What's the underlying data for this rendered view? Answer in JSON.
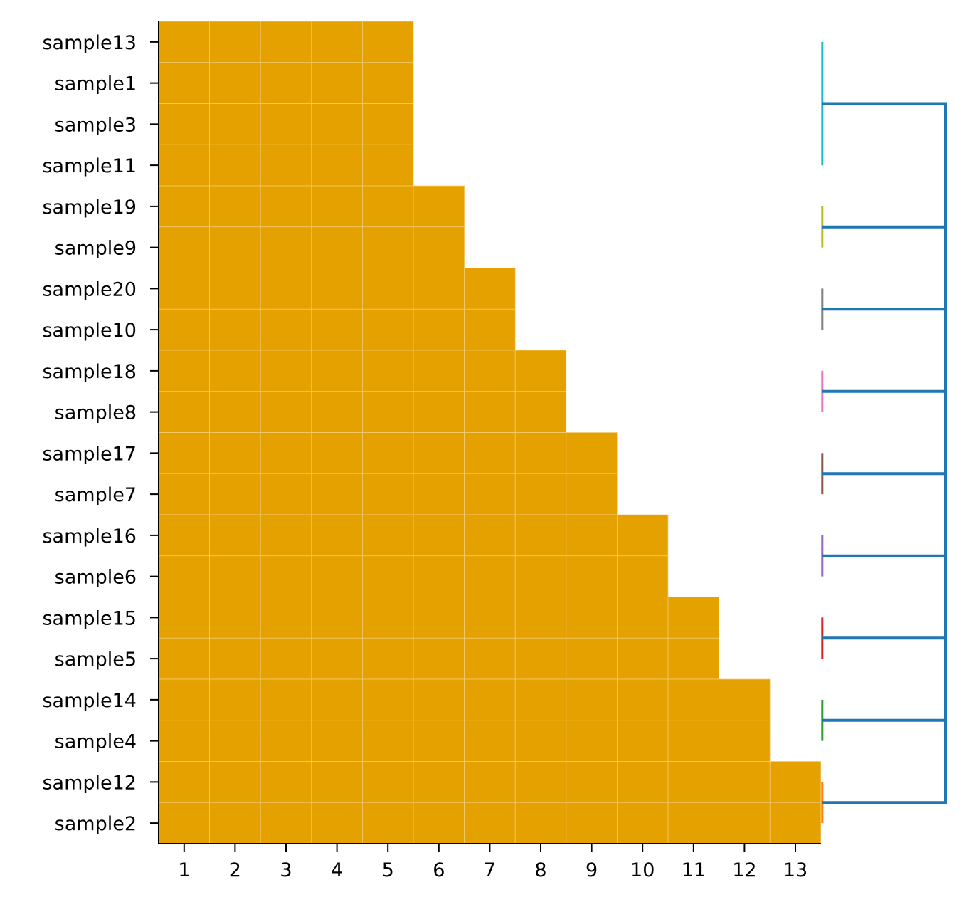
{
  "chart_data": {
    "type": "heatmap",
    "rows": [
      "sample13",
      "sample1",
      "sample3",
      "sample11",
      "sample19",
      "sample9",
      "sample20",
      "sample10",
      "sample18",
      "sample8",
      "sample17",
      "sample7",
      "sample16",
      "sample6",
      "sample15",
      "sample5",
      "sample14",
      "sample4",
      "sample12",
      "sample2"
    ],
    "columns": [
      "1",
      "2",
      "3",
      "4",
      "5",
      "6",
      "7",
      "8",
      "9",
      "10",
      "11",
      "12",
      "13"
    ],
    "filled_counts": [
      5,
      5,
      5,
      5,
      6,
      6,
      7,
      7,
      8,
      8,
      9,
      9,
      10,
      10,
      11,
      11,
      12,
      12,
      13,
      13
    ],
    "fill_color": "#E5A100",
    "cell_edge_color": "#F2CF7A",
    "dendrogram": {
      "trunk_color": "#1F77B4",
      "clusters": [
        {
          "rows": [
            "sample13",
            "sample1",
            "sample3",
            "sample11"
          ],
          "color": "#17BECF"
        },
        {
          "rows": [
            "sample19",
            "sample9"
          ],
          "color": "#BCBD22"
        },
        {
          "rows": [
            "sample20",
            "sample10"
          ],
          "color": "#7F7F7F"
        },
        {
          "rows": [
            "sample18",
            "sample8"
          ],
          "color": "#E377C2"
        },
        {
          "rows": [
            "sample17",
            "sample7"
          ],
          "color": "#8C564B"
        },
        {
          "rows": [
            "sample16",
            "sample6"
          ],
          "color": "#9467BD"
        },
        {
          "rows": [
            "sample15",
            "sample5"
          ],
          "color": "#D62728"
        },
        {
          "rows": [
            "sample14",
            "sample4"
          ],
          "color": "#2CA02C"
        },
        {
          "rows": [
            "sample12",
            "sample2"
          ],
          "color": "#FF7F0E"
        }
      ]
    },
    "grid": false,
    "legend": "none"
  }
}
